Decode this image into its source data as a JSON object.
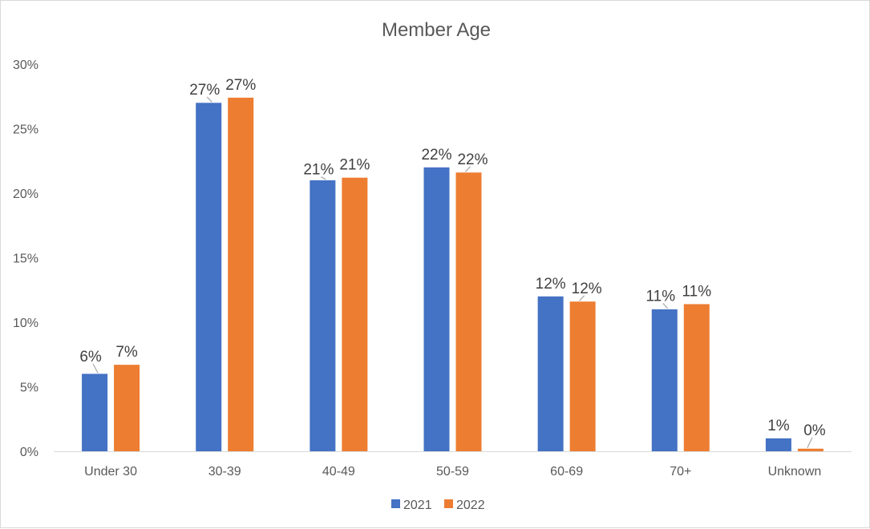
{
  "chart_data": {
    "type": "bar",
    "title": "Member Age",
    "xlabel": "",
    "ylabel": "",
    "ylim": [
      0,
      30
    ],
    "y_ticks": [
      "0%",
      "5%",
      "10%",
      "15%",
      "20%",
      "25%",
      "30%"
    ],
    "y_tick_values": [
      0,
      5,
      10,
      15,
      20,
      25,
      30
    ],
    "categories": [
      "Under 30",
      "30-39",
      "40-49",
      "50-59",
      "60-69",
      "70+",
      "Unknown"
    ],
    "series": [
      {
        "name": "2021",
        "color": "#4472C4",
        "values": [
          6,
          27,
          21,
          22,
          12,
          11,
          1
        ],
        "labels": [
          "6%",
          "27%",
          "21%",
          "22%",
          "12%",
          "11%",
          "1%"
        ]
      },
      {
        "name": "2022",
        "color": "#ED7D31",
        "values": [
          6.7,
          27.4,
          21.2,
          21.6,
          11.6,
          11.4,
          0.2
        ],
        "labels": [
          "7%",
          "27%",
          "21%",
          "22%",
          "12%",
          "11%",
          "0%"
        ]
      }
    ],
    "grid": false,
    "legend": "bottom"
  }
}
